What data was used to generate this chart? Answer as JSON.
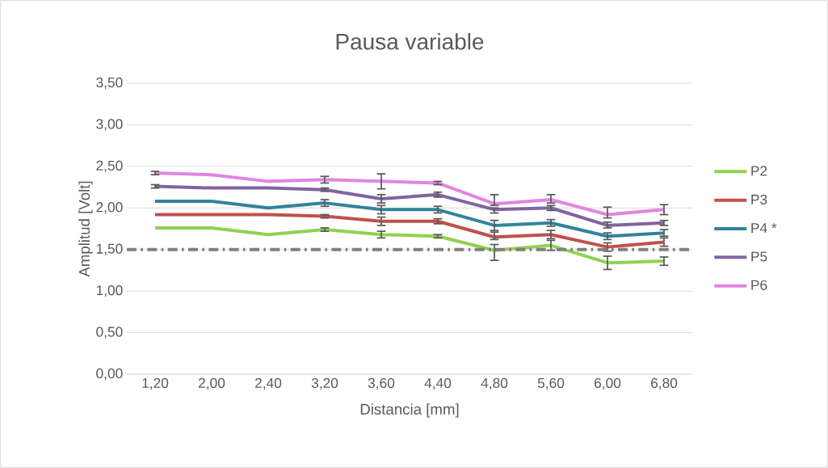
{
  "chart_data": {
    "type": "line",
    "title": "Pausa variable",
    "xlabel": "Distancia [mm]",
    "ylabel": "Amplitud [Volt]",
    "categories": [
      "1,20",
      "2,00",
      "2,40",
      "3,20",
      "3,60",
      "4,40",
      "4,80",
      "5,60",
      "6,00",
      "6,80"
    ],
    "series": [
      {
        "name": "P2",
        "color": "#92d050",
        "values": [
          1.76,
          1.76,
          1.68,
          1.74,
          1.68,
          1.66,
          1.49,
          1.55,
          1.34,
          1.36
        ],
        "errors": [
          null,
          null,
          null,
          0.02,
          0.04,
          0.02,
          [
            1.37,
            1.56
          ],
          0.06,
          0.08,
          0.05
        ]
      },
      {
        "name": "P3",
        "color": "#c0504d",
        "values": [
          1.92,
          1.92,
          1.92,
          1.9,
          1.84,
          1.84,
          1.65,
          1.68,
          1.53,
          1.59
        ],
        "errors": [
          null,
          null,
          null,
          0.02,
          0.05,
          0.03,
          [
            1.62,
            1.71
          ],
          0.05,
          0.05,
          0.05
        ]
      },
      {
        "name": "P4 *",
        "color": "#31849b",
        "values": [
          2.08,
          2.08,
          2.0,
          2.06,
          1.98,
          1.98,
          1.79,
          1.82,
          1.66,
          1.7
        ],
        "errors": [
          null,
          null,
          null,
          0.04,
          0.05,
          0.04,
          0.06,
          0.04,
          0.04,
          0.04
        ]
      },
      {
        "name": "P5",
        "color": "#8064a2",
        "values": [
          2.26,
          2.24,
          2.24,
          2.22,
          2.11,
          2.16,
          1.98,
          2.0,
          1.79,
          1.82
        ],
        "errors": [
          0.02,
          null,
          null,
          0.02,
          0.05,
          0.03,
          [
            1.94,
            2.0
          ],
          0.03,
          [
            1.76,
            1.83
          ],
          0.03
        ]
      },
      {
        "name": "P6",
        "color": "#e285e0",
        "values": [
          2.42,
          2.4,
          2.32,
          2.34,
          2.32,
          2.3,
          2.05,
          2.1,
          1.92,
          1.98
        ],
        "errors": [
          0.02,
          null,
          null,
          0.04,
          0.09,
          0.02,
          [
            2.03,
            2.16
          ],
          [
            2.06,
            2.16
          ],
          [
            1.88,
            2.01
          ],
          0.06
        ]
      }
    ],
    "ref_lines": [
      {
        "axis": "y",
        "value": 1.5,
        "color": "#808080",
        "line_style": "dashdot"
      }
    ],
    "ylim": [
      0,
      3.5
    ],
    "yticks": [
      {
        "value": 0,
        "label": "0,00"
      },
      {
        "value": 0.5,
        "label": "0,50"
      },
      {
        "value": 1,
        "label": "1,00"
      },
      {
        "value": 1.5,
        "label": "1,50"
      },
      {
        "value": 2,
        "label": "2,00"
      },
      {
        "value": 2.5,
        "label": "2,50"
      },
      {
        "value": 3,
        "label": "3,00"
      },
      {
        "value": 3.5,
        "label": "3,50"
      }
    ],
    "grid": "y",
    "legend": "right",
    "line_style": "solid",
    "marker": "none"
  }
}
